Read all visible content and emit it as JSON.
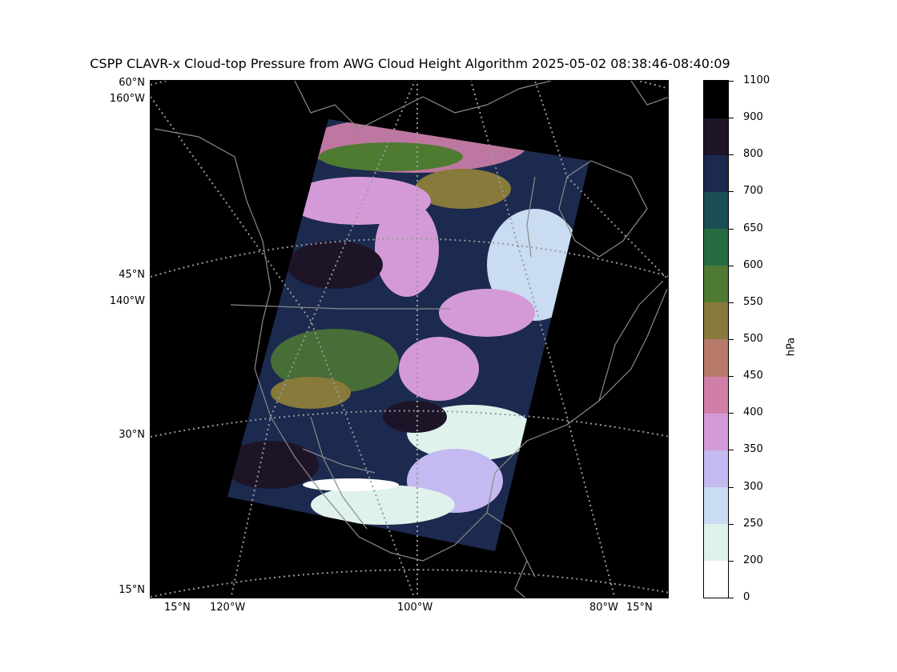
{
  "title": "CSPP CLAVR-x Cloud-top Pressure from AWG Cloud Height Algorithm 2025-05-02 08:38:46-08:40:09",
  "map_labels": {
    "lat_60": "60°N",
    "lon_160": "160°W",
    "lat_45": "45°N",
    "lon_140": "140°W",
    "lat_30": "30°N",
    "lat_15_left": "15°N",
    "bottom_15_left": "15°N",
    "lon_120": "120°W",
    "lon_100": "100°W",
    "lon_80": "80°W",
    "bottom_15_right": "15°N"
  },
  "colorbar": {
    "unit_label": "hPa",
    "ticks": [
      "0",
      "200",
      "250",
      "300",
      "350",
      "400",
      "450",
      "500",
      "550",
      "600",
      "650",
      "700",
      "800",
      "900",
      "1100"
    ],
    "bins": [
      {
        "from": 0,
        "to": 200,
        "color": "#ffffff"
      },
      {
        "from": 200,
        "to": 250,
        "color": "#dff2ec"
      },
      {
        "from": 250,
        "to": 300,
        "color": "#c9dcf2"
      },
      {
        "from": 300,
        "to": 350,
        "color": "#c4b9f0"
      },
      {
        "from": 350,
        "to": 400,
        "color": "#d49ad8"
      },
      {
        "from": 400,
        "to": 450,
        "color": "#d07fa8"
      },
      {
        "from": 450,
        "to": 500,
        "color": "#b87a6a"
      },
      {
        "from": 500,
        "to": 550,
        "color": "#887a3a"
      },
      {
        "from": 550,
        "to": 600,
        "color": "#4f7a32"
      },
      {
        "from": 600,
        "to": 650,
        "color": "#256b42"
      },
      {
        "from": 650,
        "to": 700,
        "color": "#1a4f55"
      },
      {
        "from": 700,
        "to": 800,
        "color": "#1c2a4f"
      },
      {
        "from": 800,
        "to": 900,
        "color": "#1e1428"
      },
      {
        "from": 900,
        "to": 1100,
        "color": "#000000"
      }
    ]
  }
}
